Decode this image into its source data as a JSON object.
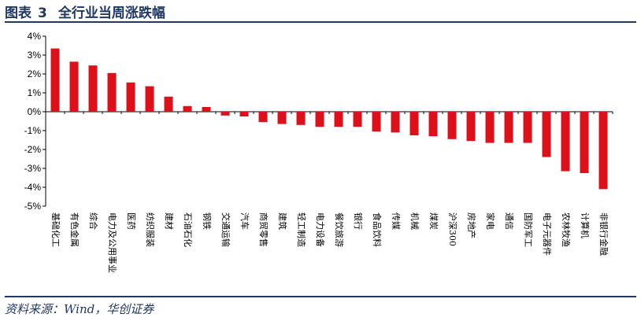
{
  "figure": {
    "label": "图表",
    "number": "3",
    "title": "全行业当周涨跌幅",
    "source": "资料来源：Wind，华创证券"
  },
  "colors": {
    "bar": "#e0101a",
    "rule": "#1f3864",
    "axis": "#000000"
  },
  "chart_data": {
    "type": "bar",
    "title": "",
    "xlabel": "",
    "ylabel": "",
    "ylim": [
      -5,
      4
    ],
    "yticks": [
      "4%",
      "3%",
      "2%",
      "1%",
      "0%",
      "-1%",
      "-2%",
      "-3%",
      "-4%",
      "-5%"
    ],
    "categories": [
      "基础化工",
      "有色金属",
      "综合",
      "电力及公用事业",
      "医药",
      "纺织服装",
      "建材",
      "石油石化",
      "钢铁",
      "交通运输",
      "汽车",
      "商贸零售",
      "建筑",
      "轻工制造",
      "电力设备",
      "餐饮旅游",
      "银行",
      "食品饮料",
      "传媒",
      "机械",
      "煤炭",
      "沪深300",
      "房地产",
      "家电",
      "通信",
      "国防军工",
      "电子元器件",
      "农林牧渔",
      "计算机",
      "非银行金融"
    ],
    "values": [
      3.35,
      2.65,
      2.45,
      2.05,
      1.55,
      1.35,
      0.8,
      0.3,
      0.25,
      -0.2,
      -0.25,
      -0.55,
      -0.65,
      -0.7,
      -0.8,
      -0.8,
      -0.8,
      -1.05,
      -1.1,
      -1.25,
      -1.3,
      -1.45,
      -1.55,
      -1.65,
      -1.65,
      -1.65,
      -2.4,
      -3.15,
      -3.25,
      -4.1
    ],
    "grid": false,
    "legend": "none"
  }
}
